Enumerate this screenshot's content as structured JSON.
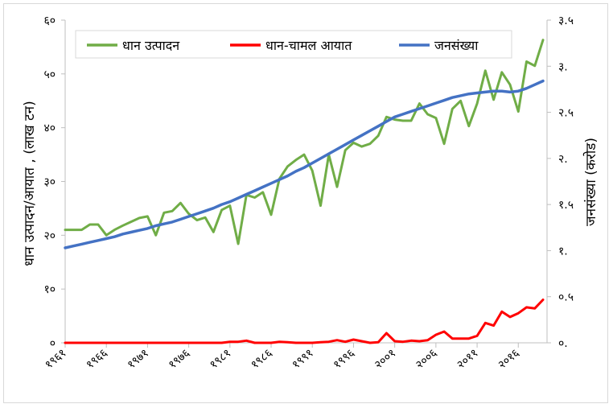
{
  "chart_data": {
    "type": "line",
    "x": [
      1961,
      1962,
      1963,
      1964,
      1965,
      1966,
      1967,
      1968,
      1969,
      1970,
      1971,
      1972,
      1973,
      1974,
      1975,
      1976,
      1977,
      1978,
      1979,
      1980,
      1981,
      1982,
      1983,
      1984,
      1985,
      1986,
      1987,
      1988,
      1989,
      1990,
      1991,
      1992,
      1993,
      1994,
      1995,
      1996,
      1997,
      1998,
      1999,
      2000,
      2001,
      2002,
      2003,
      2004,
      2005,
      2006,
      2007,
      2008,
      2009,
      2010,
      2011,
      2012,
      2013,
      2014,
      2015,
      2016,
      2017,
      2018,
      2019
    ],
    "series": [
      {
        "name": "धान उत्पादन",
        "axis": "left",
        "color": "#70ad47",
        "values": [
          21.0,
          21.0,
          21.0,
          22.0,
          22.0,
          20.0,
          21.0,
          21.8,
          22.5,
          23.2,
          23.5,
          20.0,
          24.2,
          24.5,
          26.0,
          24.0,
          22.8,
          23.3,
          20.6,
          24.7,
          25.5,
          18.4,
          27.5,
          27.0,
          28.0,
          23.8,
          30.5,
          32.8,
          34.0,
          35.0,
          32.0,
          25.5,
          35.0,
          29.0,
          35.8,
          37.2,
          36.5,
          37.0,
          38.5,
          42.0,
          41.5,
          41.3,
          41.3,
          44.5,
          42.5,
          41.8,
          37.0,
          43.5,
          45.0,
          40.3,
          44.5,
          50.6,
          45.2,
          50.3,
          48.0,
          43.0,
          52.3,
          51.5,
          56.3
        ]
      },
      {
        "name": "धान-चामल आयात",
        "axis": "left",
        "color": "#ff0000",
        "values": [
          0,
          0,
          0,
          0,
          0,
          0,
          0,
          0,
          0,
          0,
          0,
          0,
          0,
          0,
          0,
          0,
          0,
          0,
          0,
          0,
          0.2,
          0.2,
          0.4,
          0,
          0,
          0,
          0.2,
          0.1,
          0,
          0,
          0,
          0.1,
          0.2,
          0.5,
          0.2,
          0.6,
          0.3,
          0,
          0.1,
          1.8,
          0.3,
          0.2,
          0.4,
          0.3,
          0.5,
          1.5,
          2.1,
          0.8,
          0.8,
          0.8,
          1.3,
          3.7,
          3.2,
          5.8,
          4.8,
          5.5,
          6.6,
          6.4,
          8.0
        ]
      },
      {
        "name": "जनसंख्या",
        "axis": "right",
        "color": "#4472c4",
        "values": [
          1.03,
          1.05,
          1.07,
          1.09,
          1.11,
          1.13,
          1.15,
          1.18,
          1.2,
          1.22,
          1.24,
          1.27,
          1.29,
          1.31,
          1.34,
          1.37,
          1.4,
          1.43,
          1.46,
          1.5,
          1.53,
          1.57,
          1.61,
          1.65,
          1.69,
          1.73,
          1.77,
          1.81,
          1.86,
          1.9,
          1.95,
          2.0,
          2.05,
          2.1,
          2.15,
          2.2,
          2.25,
          2.3,
          2.35,
          2.4,
          2.45,
          2.48,
          2.51,
          2.54,
          2.57,
          2.6,
          2.63,
          2.66,
          2.68,
          2.7,
          2.71,
          2.72,
          2.73,
          2.73,
          2.72,
          2.73,
          2.76,
          2.8,
          2.84
        ]
      }
    ],
    "y_left": {
      "label": "धान उत्पादन/आयात , (लाख टन)",
      "ylim": [
        0,
        60
      ],
      "ticks": [
        "०",
        "१०",
        "२०",
        "३०",
        "४०",
        "५०",
        "६०"
      ]
    },
    "y_right": {
      "label": "जनसंख्या (करोड)",
      "ylim": [
        0,
        3.5
      ],
      "ticks": [
        "०.",
        "०.५",
        "१.",
        "१.५",
        "२.",
        "२.५",
        "३.",
        "३.५"
      ]
    },
    "x_tick_labels": [
      "१९६१",
      "१९६६",
      "१९७१",
      "१९७६",
      "१९८१",
      "१९८६",
      "१९९१",
      "१९९६",
      "२००१",
      "२००६",
      "२०११",
      "२०१६"
    ],
    "legend": {
      "placement": "top-left"
    },
    "grid": false
  }
}
